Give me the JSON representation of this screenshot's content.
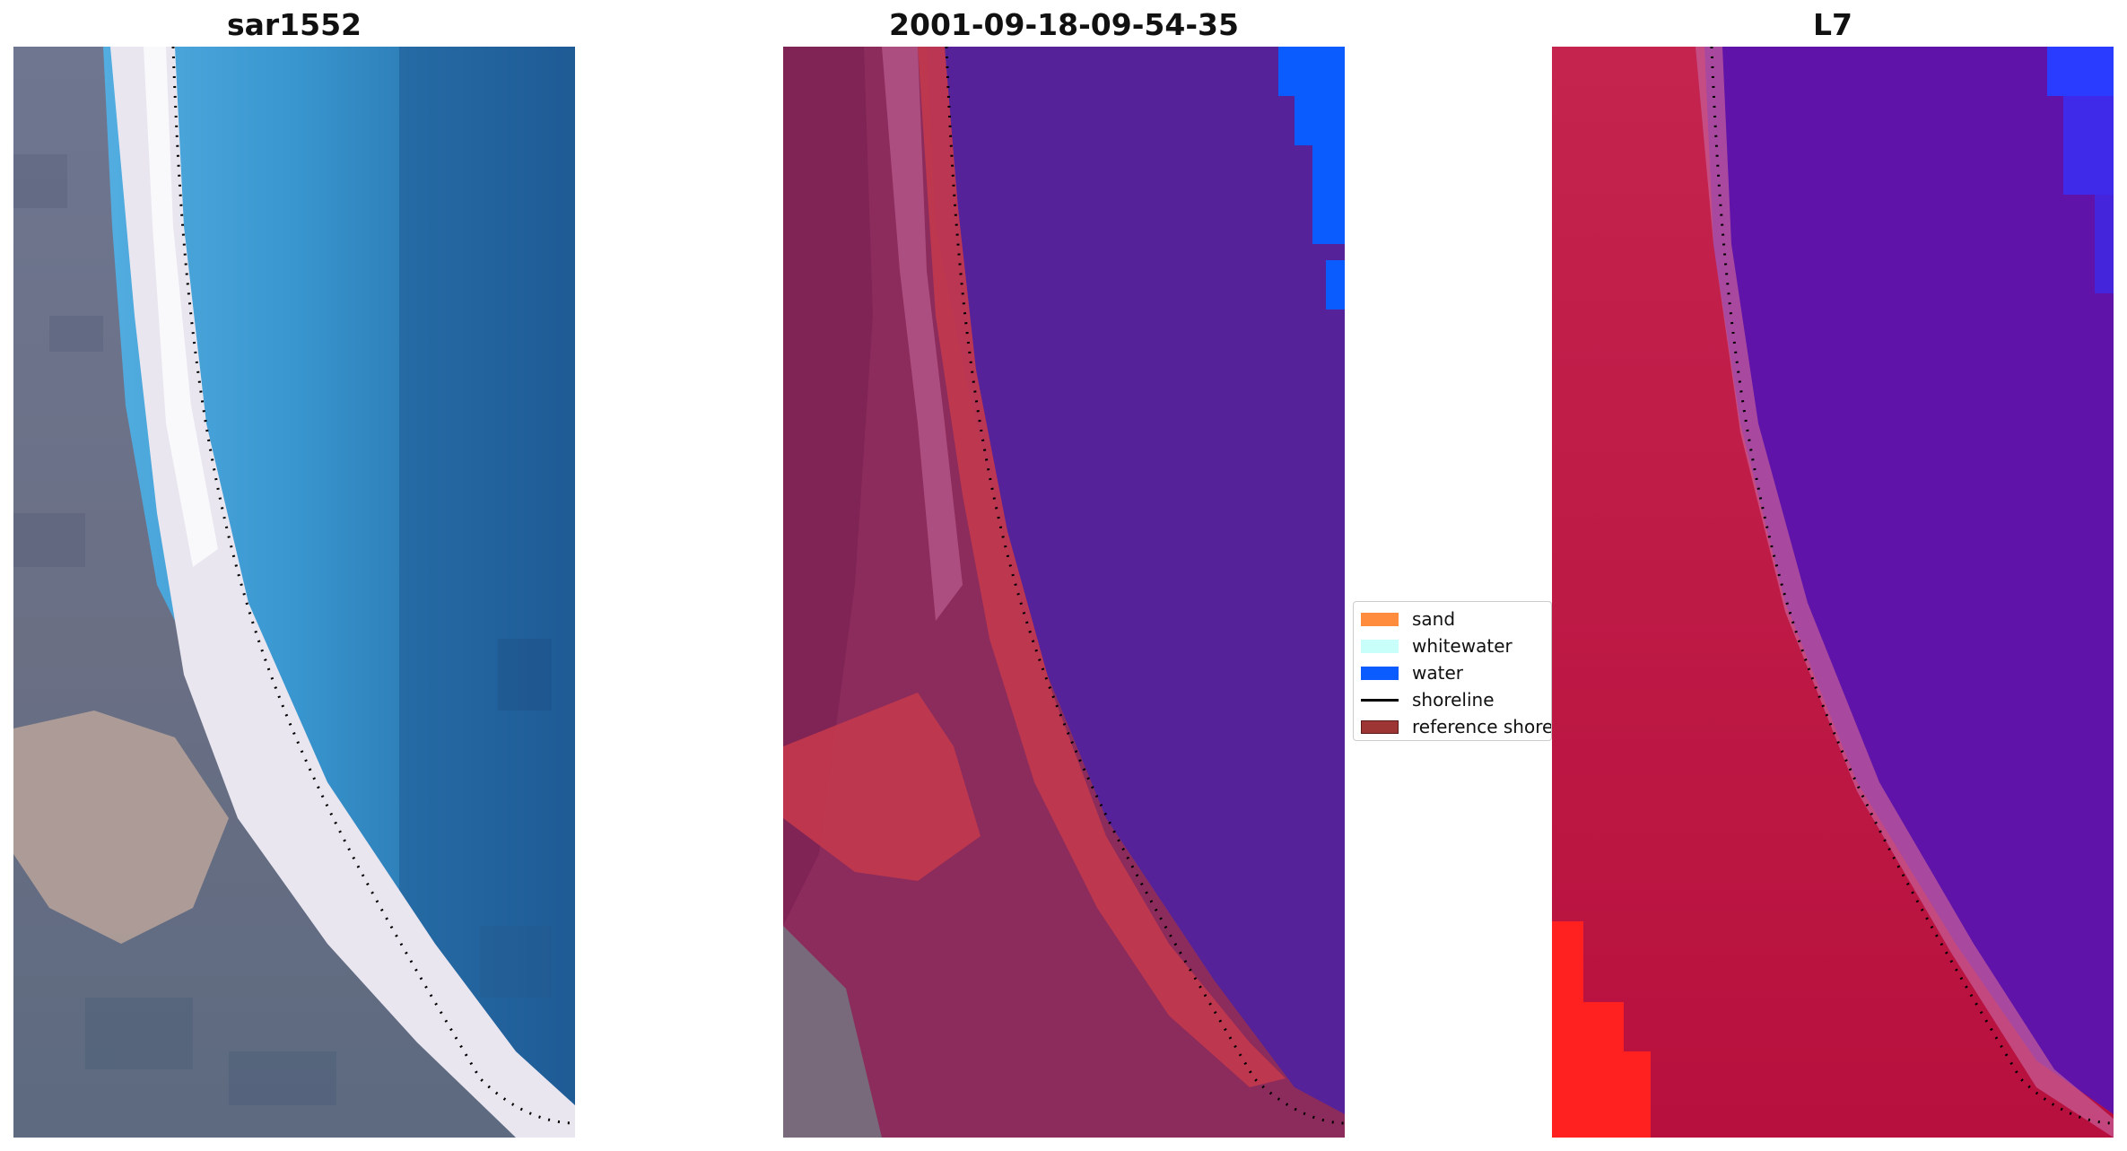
{
  "panels": [
    {
      "title": "sar1552"
    },
    {
      "title": "2001-09-18-09-54-35"
    },
    {
      "title": "L7"
    }
  ],
  "legend": {
    "items": [
      {
        "label": "sand",
        "color": "#ff8c3c",
        "kind": "patch"
      },
      {
        "label": "whitewater",
        "color": "#c9fffa",
        "kind": "patch"
      },
      {
        "label": "water",
        "color": "#0a5cff",
        "kind": "patch"
      },
      {
        "label": "shoreline",
        "color": "#000000",
        "kind": "line"
      },
      {
        "label": "reference shoreline buffer",
        "color": "#9e3535",
        "kind": "patch"
      }
    ]
  }
}
